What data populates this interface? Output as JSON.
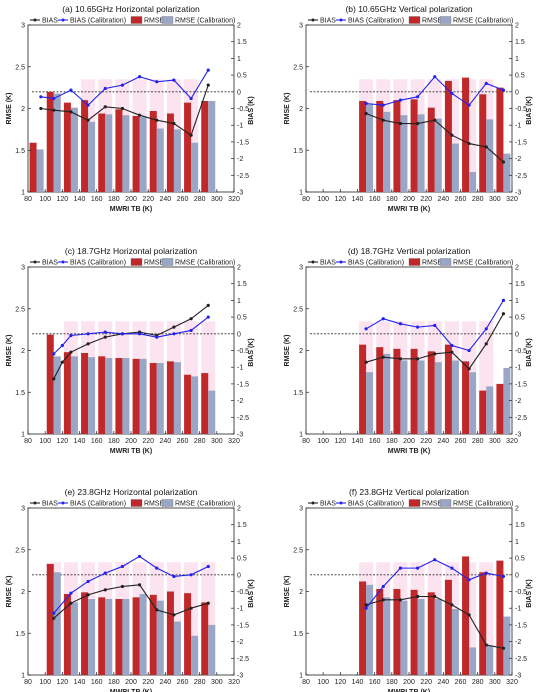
{
  "legend": {
    "bias": "BIAS",
    "bias_cal": "BIAS (Calibration)",
    "rmse": "RMSE",
    "rmse_cal": "RMSE (Calibration)"
  },
  "colors": {
    "bias": "#222222",
    "bias_cal": "#2222ee",
    "rmse": "#c0282a",
    "rmse_cal": "#9aa6c6",
    "highlight": "#fbe3ef"
  },
  "chart_data": [
    {
      "type": "bar",
      "title": "(a) 10.65GHz Horizontal polarization",
      "xlabel": "MWRI TB (K)",
      "ylabel": "RMSE (K)",
      "y2label": "BIAS (K)",
      "xlim": [
        80,
        320
      ],
      "ylim": [
        1,
        3
      ],
      "y2lim": [
        -3,
        2
      ],
      "x": [
        90,
        110,
        130,
        150,
        170,
        190,
        210,
        230,
        250,
        270,
        290
      ],
      "series": [
        {
          "name": "RMSE",
          "values": [
            1.59,
            2.2,
            2.07,
            2.1,
            1.94,
            1.99,
            1.91,
            1.97,
            1.94,
            2.07,
            2.09
          ]
        },
        {
          "name": "RMSE (Calibration)",
          "values": [
            1.51,
            2.18,
            2.01,
            1.84,
            1.93,
            1.92,
            1.9,
            1.76,
            1.75,
            1.59,
            2.09
          ]
        },
        {
          "name": "BIAS",
          "x": [
            95,
            110,
            130,
            150,
            170,
            190,
            210,
            230,
            250,
            270,
            290
          ],
          "values": [
            -0.5,
            -0.55,
            -0.6,
            -0.85,
            -0.45,
            -0.5,
            -0.7,
            -0.85,
            -0.95,
            -1.3,
            0.2
          ]
        },
        {
          "name": "BIAS (Calibration)",
          "x": [
            95,
            110,
            130,
            150,
            170,
            190,
            210,
            230,
            250,
            270,
            290
          ],
          "values": [
            -0.15,
            -0.2,
            0.05,
            -0.4,
            0.1,
            0.2,
            0.45,
            0.3,
            0.35,
            -0.2,
            0.65
          ]
        }
      ],
      "highlight_x": [
        150,
        170,
        190,
        210,
        230,
        250,
        270
      ],
      "xticks": [
        80,
        100,
        120,
        140,
        160,
        180,
        200,
        220,
        240,
        260,
        280,
        300,
        320
      ],
      "yticks": [
        1,
        1.5,
        2,
        2.5,
        3
      ],
      "y2ticks": [
        -3,
        -2.5,
        -2,
        -1.5,
        -1,
        -0.5,
        0,
        0.5,
        1,
        1.5,
        2
      ]
    },
    {
      "type": "bar",
      "title": "(b) 10.65GHz Vertical polarization",
      "xlabel": "MWRI TB (K)",
      "ylabel": "RMSE (K)",
      "y2label": "BIAS (K)",
      "xlim": [
        80,
        320
      ],
      "ylim": [
        1,
        3
      ],
      "y2lim": [
        -3,
        2
      ],
      "x": [
        150,
        170,
        190,
        210,
        230,
        250,
        270,
        290,
        310
      ],
      "series": [
        {
          "name": "RMSE",
          "values": [
            2.09,
            2.09,
            2.1,
            2.11,
            2.01,
            2.33,
            2.37,
            2.17,
            2.25
          ]
        },
        {
          "name": "RMSE (Calibration)",
          "values": [
            2.05,
            1.96,
            1.92,
            1.93,
            1.88,
            1.58,
            1.24,
            1.87,
            1.46
          ]
        },
        {
          "name": "BIAS",
          "values": [
            -0.65,
            -0.85,
            -0.95,
            -0.95,
            -0.85,
            -1.3,
            -1.55,
            -1.65,
            -2.1
          ]
        },
        {
          "name": "BIAS (Calibration)",
          "values": [
            -0.35,
            -0.4,
            -0.25,
            -0.15,
            0.45,
            -0.05,
            -0.4,
            0.25,
            0.05
          ]
        }
      ],
      "highlight_x": [
        150,
        170,
        190,
        210,
        230,
        250,
        270,
        290
      ],
      "xticks": [
        80,
        100,
        120,
        140,
        160,
        180,
        200,
        220,
        240,
        260,
        280,
        300,
        320
      ],
      "yticks": [
        1,
        1.5,
        2,
        2.5,
        3
      ],
      "y2ticks": [
        -3,
        -2.5,
        -2,
        -1.5,
        -1,
        -0.5,
        0,
        0.5,
        1,
        1.5,
        2
      ]
    },
    {
      "type": "bar",
      "title": "(c) 18.7GHz Horizontal polarization",
      "xlabel": "MWRI TB (K)",
      "ylabel": "RMSE (K)",
      "y2label": "BIAS (K)",
      "xlim": [
        80,
        320
      ],
      "ylim": [
        1,
        3
      ],
      "y2lim": [
        -3,
        2
      ],
      "x": [
        110,
        130,
        150,
        170,
        190,
        210,
        230,
        250,
        270,
        290
      ],
      "series": [
        {
          "name": "RMSE",
          "values": [
            2.19,
            1.98,
            1.97,
            1.93,
            1.91,
            1.9,
            1.85,
            1.87,
            1.71,
            1.73
          ]
        },
        {
          "name": "RMSE (Calibration)",
          "values": [
            1.93,
            1.93,
            1.92,
            1.91,
            1.91,
            1.9,
            1.85,
            1.86,
            1.69,
            1.52
          ]
        },
        {
          "name": "BIAS",
          "x": [
            110,
            120,
            130,
            150,
            170,
            190,
            210,
            230,
            250,
            270,
            290
          ],
          "values": [
            -1.35,
            -0.85,
            -0.55,
            -0.3,
            -0.1,
            0.0,
            0.05,
            -0.05,
            0.2,
            0.45,
            0.85
          ]
        },
        {
          "name": "BIAS (Calibration)",
          "x": [
            110,
            120,
            130,
            150,
            170,
            190,
            210,
            230,
            250,
            270,
            290
          ],
          "values": [
            -0.6,
            -0.35,
            -0.05,
            0.0,
            0.05,
            0.0,
            0.0,
            -0.1,
            0.0,
            0.1,
            0.5
          ]
        }
      ],
      "highlight_x": [
        130,
        150,
        170,
        190,
        210,
        230,
        250,
        270,
        290
      ],
      "xticks": [
        80,
        100,
        120,
        140,
        160,
        180,
        200,
        220,
        240,
        260,
        280,
        300,
        320
      ],
      "yticks": [
        1,
        1.5,
        2,
        2.5,
        3
      ],
      "y2ticks": [
        -3,
        -2.5,
        -2,
        -1.5,
        -1,
        -0.5,
        0,
        0.5,
        1,
        1.5,
        2
      ]
    },
    {
      "type": "bar",
      "title": "(d) 18.7GHz Vertical polarization",
      "xlabel": "MWRI TB (K)",
      "ylabel": "RMSE (K)",
      "y2label": "BIAS (K)",
      "xlim": [
        80,
        320
      ],
      "ylim": [
        1,
        3
      ],
      "y2lim": [
        -3,
        2
      ],
      "x": [
        150,
        170,
        190,
        210,
        230,
        250,
        270,
        290,
        310
      ],
      "series": [
        {
          "name": "RMSE",
          "values": [
            2.07,
            2.04,
            2.02,
            2.02,
            1.99,
            2.07,
            1.87,
            1.52,
            1.6
          ]
        },
        {
          "name": "RMSE (Calibration)",
          "values": [
            1.74,
            1.96,
            1.88,
            1.88,
            1.86,
            1.88,
            1.74,
            1.57,
            1.79
          ]
        },
        {
          "name": "BIAS",
          "values": [
            -0.85,
            -0.7,
            -0.75,
            -0.75,
            -0.6,
            -0.55,
            -1.05,
            -0.3,
            0.6
          ]
        },
        {
          "name": "BIAS (Calibration)",
          "values": [
            0.15,
            0.45,
            0.3,
            0.2,
            0.25,
            -0.35,
            -0.5,
            0.15,
            1.0
          ]
        }
      ],
      "highlight_x": [
        150,
        170,
        190,
        210,
        230,
        250,
        270,
        290
      ],
      "xticks": [
        80,
        100,
        120,
        140,
        160,
        180,
        200,
        220,
        240,
        260,
        280,
        300,
        320
      ],
      "yticks": [
        1,
        1.5,
        2,
        2.5,
        3
      ],
      "y2ticks": [
        -3,
        -2.5,
        -2,
        -1.5,
        -1,
        -0.5,
        0,
        0.5,
        1,
        1.5,
        2
      ]
    },
    {
      "type": "bar",
      "title": "(e) 23.8GHz Horizontal polarization",
      "xlabel": "MWRI TB (K)",
      "ylabel": "RMSE (K)",
      "y2label": "BIAS (K)",
      "xlim": [
        80,
        320
      ],
      "ylim": [
        1,
        3
      ],
      "y2lim": [
        -3,
        2
      ],
      "x": [
        110,
        130,
        150,
        170,
        190,
        210,
        230,
        250,
        270,
        290
      ],
      "series": [
        {
          "name": "RMSE",
          "values": [
            2.33,
            1.97,
            1.99,
            1.93,
            1.91,
            1.93,
            1.96,
            2.0,
            1.98,
            1.87
          ]
        },
        {
          "name": "RMSE (Calibration)",
          "values": [
            2.23,
            1.87,
            1.91,
            1.91,
            1.91,
            1.97,
            1.89,
            1.64,
            1.47,
            1.6
          ]
        },
        {
          "name": "BIAS",
          "values": [
            -1.3,
            -0.85,
            -0.6,
            -0.45,
            -0.35,
            -0.3,
            -1.05,
            -1.2,
            -1.0,
            -0.85
          ]
        },
        {
          "name": "BIAS (Calibration)",
          "values": [
            -1.15,
            -0.55,
            -0.2,
            0.05,
            0.25,
            0.55,
            0.2,
            -0.05,
            0.0,
            0.25
          ]
        }
      ],
      "highlight_x": [
        110,
        130,
        150,
        170,
        190,
        210,
        230,
        250,
        270,
        290
      ],
      "xticks": [
        80,
        100,
        120,
        140,
        160,
        180,
        200,
        220,
        240,
        260,
        280,
        300,
        320
      ],
      "yticks": [
        1,
        1.5,
        2,
        2.5,
        3
      ],
      "y2ticks": [
        -3,
        -2.5,
        -2,
        -1.5,
        -1,
        -0.5,
        0,
        0.5,
        1,
        1.5,
        2
      ]
    },
    {
      "type": "bar",
      "title": "(f) 23.8GHz Vertical polarization",
      "xlabel": "MWRI TB (K)",
      "ylabel": "RMSE (K)",
      "y2label": "BIAS (K)",
      "xlim": [
        80,
        320
      ],
      "ylim": [
        1,
        3
      ],
      "y2lim": [
        -3,
        2
      ],
      "x": [
        150,
        170,
        190,
        210,
        230,
        250,
        270,
        290,
        310
      ],
      "series": [
        {
          "name": "RMSE",
          "values": [
            2.12,
            2.03,
            2.03,
            2.02,
            1.99,
            2.14,
            2.42,
            2.23,
            2.37
          ]
        },
        {
          "name": "RMSE (Calibration)",
          "values": [
            2.08,
            1.93,
            1.89,
            1.91,
            1.91,
            1.79,
            1.33,
            1.35,
            1.7
          ]
        },
        {
          "name": "BIAS",
          "values": [
            -0.9,
            -0.75,
            -0.75,
            -0.65,
            -0.65,
            -0.9,
            -1.2,
            -2.1,
            -2.2
          ]
        },
        {
          "name": "BIAS (Calibration)",
          "values": [
            -1.0,
            -0.35,
            0.2,
            0.2,
            0.45,
            0.2,
            -0.15,
            0.05,
            -0.05
          ]
        }
      ],
      "highlight_x": [
        150,
        170,
        190,
        210,
        230,
        250,
        270,
        290
      ],
      "xticks": [
        80,
        100,
        120,
        140,
        160,
        180,
        200,
        220,
        240,
        260,
        280,
        300,
        320
      ],
      "yticks": [
        1,
        1.5,
        2,
        2.5,
        3
      ],
      "y2ticks": [
        -3,
        -2.5,
        -2,
        -1.5,
        -1,
        -0.5,
        0,
        0.5,
        1,
        1.5,
        2
      ]
    }
  ]
}
